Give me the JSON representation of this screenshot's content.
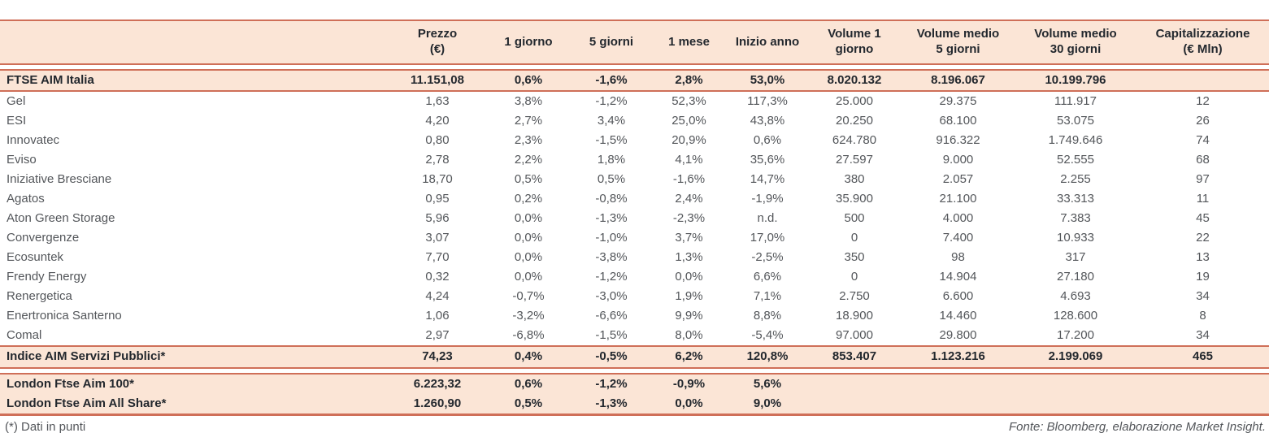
{
  "colors": {
    "accent_border": "#cf6f58",
    "row_highlight": "#fbe5d6",
    "text_dark": "#23282e",
    "text_body": "#53565a"
  },
  "table": {
    "columns": [
      "",
      "Prezzo\n(€)",
      "1 giorno",
      "5 giorni",
      "1 mese",
      "Inizio anno",
      "Volume 1\ngiorno",
      "Volume medio\n5 giorni",
      "Volume medio\n30 giorni",
      "Capitalizzazione\n(€ Mln)"
    ],
    "index_row": [
      [
        "FTSE AIM Italia",
        "11.151,08",
        "0,6%",
        "-1,6%",
        "2,8%",
        "53,0%",
        "8.020.132",
        "8.196.067",
        "10.199.796",
        ""
      ]
    ],
    "stocks": [
      [
        "Gel",
        "1,63",
        "3,8%",
        "-1,2%",
        "52,3%",
        "117,3%",
        "25.000",
        "29.375",
        "111.917",
        "12"
      ],
      [
        "ESI",
        "4,20",
        "2,7%",
        "3,4%",
        "25,0%",
        "43,8%",
        "20.250",
        "68.100",
        "53.075",
        "26"
      ],
      [
        "Innovatec",
        "0,80",
        "2,3%",
        "-1,5%",
        "20,9%",
        "0,6%",
        "624.780",
        "916.322",
        "1.749.646",
        "74"
      ],
      [
        "Eviso",
        "2,78",
        "2,2%",
        "1,8%",
        "4,1%",
        "35,6%",
        "27.597",
        "9.000",
        "52.555",
        "68"
      ],
      [
        "Iniziative Bresciane",
        "18,70",
        "0,5%",
        "0,5%",
        "-1,6%",
        "14,7%",
        "380",
        "2.057",
        "2.255",
        "97"
      ],
      [
        "Agatos",
        "0,95",
        "0,2%",
        "-0,8%",
        "2,4%",
        "-1,9%",
        "35.900",
        "21.100",
        "33.313",
        "11"
      ],
      [
        "Aton Green Storage",
        "5,96",
        "0,0%",
        "-1,3%",
        "-2,3%",
        "n.d.",
        "500",
        "4.000",
        "7.383",
        "45"
      ],
      [
        "Convergenze",
        "3,07",
        "0,0%",
        "-1,0%",
        "3,7%",
        "17,0%",
        "0",
        "7.400",
        "10.933",
        "22"
      ],
      [
        "Ecosuntek",
        "7,70",
        "0,0%",
        "-3,8%",
        "1,3%",
        "-2,5%",
        "350",
        "98",
        "317",
        "13"
      ],
      [
        "Frendy Energy",
        "0,32",
        "0,0%",
        "-1,2%",
        "0,0%",
        "6,6%",
        "0",
        "14.904",
        "27.180",
        "19"
      ],
      [
        "Renergetica",
        "4,24",
        "-0,7%",
        "-3,0%",
        "1,9%",
        "7,1%",
        "2.750",
        "6.600",
        "4.693",
        "34"
      ],
      [
        "Enertronica Santerno",
        "1,06",
        "-3,2%",
        "-6,6%",
        "9,9%",
        "8,8%",
        "18.900",
        "14.460",
        "128.600",
        "8"
      ],
      [
        "Comal",
        "2,97",
        "-6,8%",
        "-1,5%",
        "8,0%",
        "-5,4%",
        "97.000",
        "29.800",
        "17.200",
        "34"
      ]
    ],
    "services_index_row": [
      [
        "Indice AIM Servizi Pubblici*",
        "74,23",
        "0,4%",
        "-0,5%",
        "6,2%",
        "120,8%",
        "853.407",
        "1.123.216",
        "2.199.069",
        "465"
      ]
    ],
    "london_rows": [
      [
        "London Ftse Aim 100*",
        "6.223,32",
        "0,6%",
        "-1,2%",
        "-0,9%",
        "5,6%",
        "",
        "",
        "",
        ""
      ],
      [
        "London Ftse Aim All Share*",
        "1.260,90",
        "0,5%",
        "-1,3%",
        "0,0%",
        "9,0%",
        "",
        "",
        "",
        ""
      ]
    ]
  },
  "footer": {
    "footnote": "(*) Dati in punti",
    "source": "Fonte: Bloomberg, elaborazione Market Insight."
  }
}
